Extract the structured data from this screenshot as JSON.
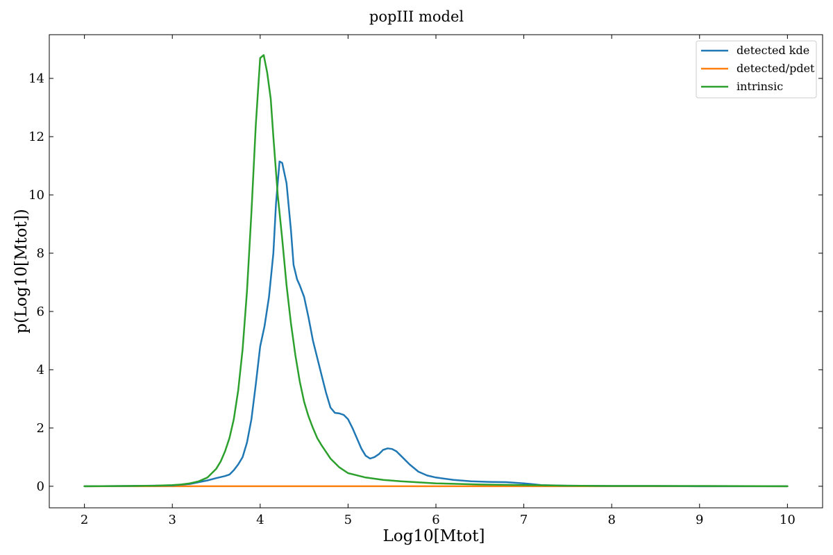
{
  "chart_data": {
    "type": "line",
    "title": "popIII model",
    "xlabel": "Log10[Mtot]",
    "ylabel": "p(Log10[Mtot])",
    "xlim": [
      1.6,
      10.4
    ],
    "ylim": [
      -0.74,
      15.5
    ],
    "xticks": [
      2,
      3,
      4,
      5,
      6,
      7,
      8,
      9,
      10
    ],
    "yticks": [
      0,
      2,
      4,
      6,
      8,
      10,
      12,
      14
    ],
    "grid": false,
    "legend_position": "top-right",
    "series": [
      {
        "name": "detected kde",
        "color": "#1f77b4",
        "x": [
          2.0,
          2.5,
          3.0,
          3.2,
          3.4,
          3.5,
          3.6,
          3.65,
          3.7,
          3.75,
          3.8,
          3.85,
          3.9,
          3.95,
          4.0,
          4.05,
          4.1,
          4.15,
          4.18,
          4.22,
          4.25,
          4.3,
          4.35,
          4.38,
          4.42,
          4.45,
          4.5,
          4.55,
          4.6,
          4.65,
          4.7,
          4.75,
          4.8,
          4.85,
          4.9,
          4.95,
          5.0,
          5.05,
          5.1,
          5.15,
          5.2,
          5.25,
          5.3,
          5.35,
          5.4,
          5.45,
          5.5,
          5.55,
          5.6,
          5.7,
          5.8,
          5.9,
          6.0,
          6.2,
          6.4,
          6.6,
          6.8,
          7.0,
          7.2,
          7.5,
          8.0,
          8.5,
          9.0,
          9.5,
          10.0
        ],
        "y": [
          0.0,
          0.01,
          0.03,
          0.08,
          0.2,
          0.28,
          0.35,
          0.4,
          0.55,
          0.75,
          1.0,
          1.5,
          2.3,
          3.5,
          4.8,
          5.5,
          6.5,
          8.0,
          9.7,
          11.15,
          11.1,
          10.4,
          8.8,
          7.6,
          7.1,
          6.9,
          6.5,
          5.8,
          5.0,
          4.4,
          3.8,
          3.2,
          2.7,
          2.52,
          2.5,
          2.45,
          2.3,
          2.0,
          1.65,
          1.3,
          1.05,
          0.95,
          1.0,
          1.1,
          1.25,
          1.3,
          1.28,
          1.2,
          1.05,
          0.75,
          0.5,
          0.37,
          0.3,
          0.22,
          0.17,
          0.15,
          0.14,
          0.1,
          0.04,
          0.02,
          0.01,
          0.01,
          0.0,
          0.0,
          0.0
        ]
      },
      {
        "name": "detected/pdet",
        "color": "#ff7f0e",
        "x": [
          2.0,
          10.0
        ],
        "y": [
          0.0,
          0.0
        ]
      },
      {
        "name": "intrinsic",
        "color": "#2ca02c",
        "x": [
          2.0,
          2.5,
          2.8,
          3.0,
          3.1,
          3.2,
          3.3,
          3.4,
          3.45,
          3.5,
          3.55,
          3.6,
          3.65,
          3.7,
          3.75,
          3.8,
          3.85,
          3.9,
          3.95,
          3.98,
          4.0,
          4.04,
          4.08,
          4.12,
          4.15,
          4.2,
          4.25,
          4.3,
          4.35,
          4.4,
          4.45,
          4.5,
          4.55,
          4.6,
          4.65,
          4.7,
          4.8,
          4.9,
          5.0,
          5.2,
          5.4,
          5.6,
          6.0,
          6.5,
          7.0,
          7.5,
          8.0,
          9.0,
          10.0
        ],
        "y": [
          0.0,
          0.01,
          0.02,
          0.04,
          0.06,
          0.1,
          0.17,
          0.3,
          0.45,
          0.6,
          0.85,
          1.2,
          1.65,
          2.3,
          3.3,
          4.7,
          6.7,
          9.4,
          12.4,
          13.8,
          14.7,
          14.8,
          14.2,
          13.3,
          12.0,
          10.0,
          8.5,
          6.9,
          5.6,
          4.5,
          3.6,
          2.9,
          2.4,
          2.0,
          1.65,
          1.4,
          0.95,
          0.65,
          0.45,
          0.3,
          0.22,
          0.17,
          0.1,
          0.06,
          0.04,
          0.02,
          0.01,
          0.01,
          0.0
        ]
      }
    ]
  }
}
